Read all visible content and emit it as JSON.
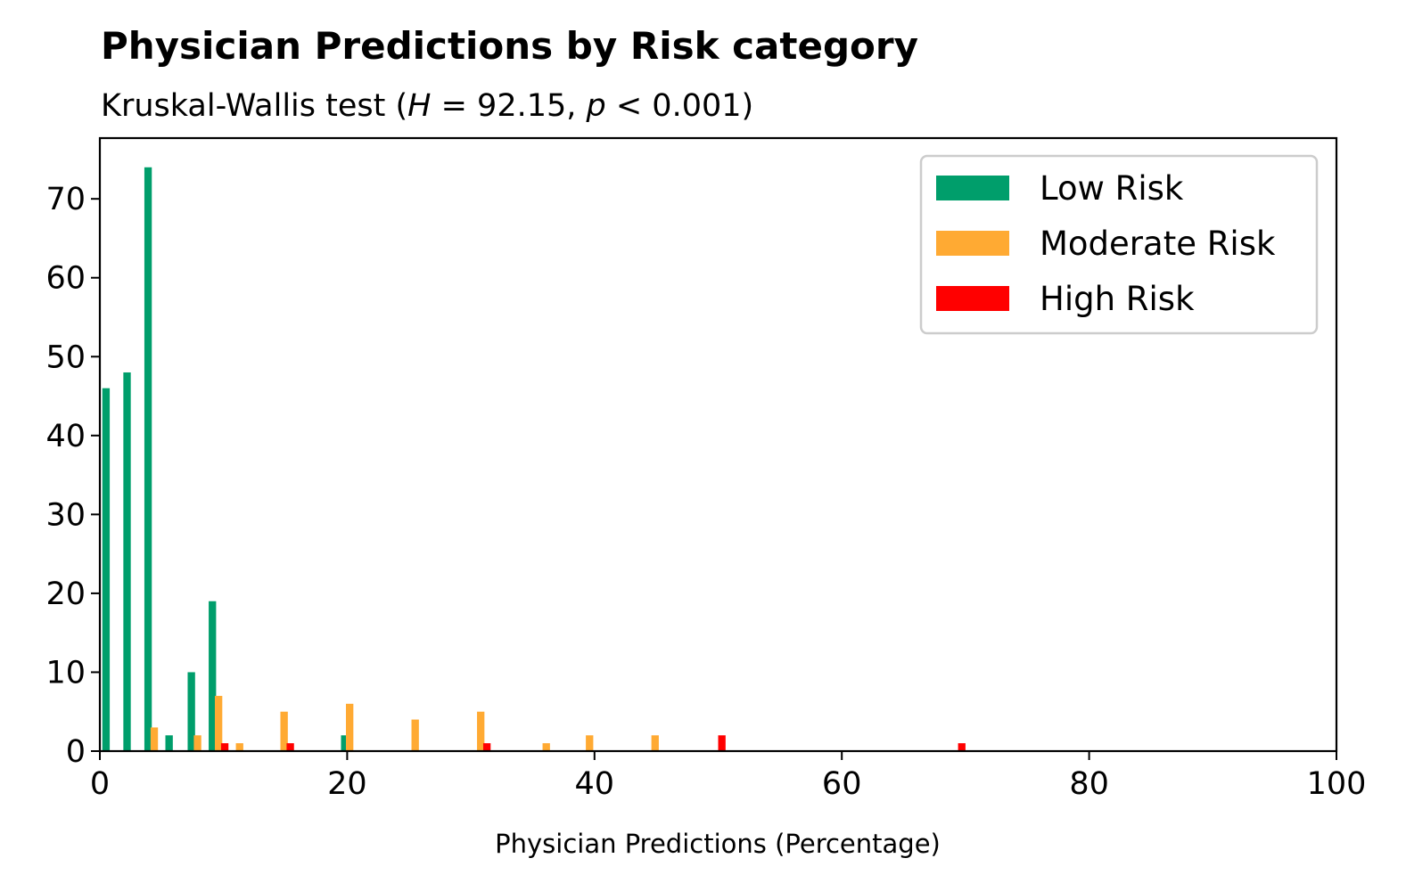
{
  "chart_data": {
    "type": "bar",
    "title": "Physician Predictions by Risk category",
    "subtitle": {
      "prefix": "Kruskal-Wallis test (",
      "h_var": "H",
      "h_eq": " = 92.15, ",
      "p_var": "p",
      "p_lt": " < 0.001)"
    },
    "xlabel": "Physician Predictions (Percentage)",
    "ylabel": "",
    "xlim": [
      0,
      100
    ],
    "ylim": [
      0,
      77.7
    ],
    "xticks": [
      0,
      20,
      40,
      60,
      80,
      100
    ],
    "yticks": [
      0,
      10,
      20,
      30,
      40,
      50,
      60,
      70
    ],
    "grid": false,
    "legend_position": "upper right",
    "bin_width": 1.8,
    "series": [
      {
        "name": "Low Risk",
        "color": "#009E6B",
        "points": [
          {
            "x": 0.5,
            "y": 46
          },
          {
            "x": 2.2,
            "y": 48
          },
          {
            "x": 3.9,
            "y": 74
          },
          {
            "x": 5.6,
            "y": 2
          },
          {
            "x": 7.4,
            "y": 10
          },
          {
            "x": 9.1,
            "y": 19
          },
          {
            "x": 19.8,
            "y": 2
          }
        ]
      },
      {
        "name": "Moderate Risk",
        "color": "#FFAA33",
        "points": [
          {
            "x": 4.4,
            "y": 3
          },
          {
            "x": 7.9,
            "y": 2
          },
          {
            "x": 9.6,
            "y": 7
          },
          {
            "x": 11.3,
            "y": 1
          },
          {
            "x": 14.9,
            "y": 5
          },
          {
            "x": 20.2,
            "y": 6
          },
          {
            "x": 25.5,
            "y": 4
          },
          {
            "x": 30.8,
            "y": 5
          },
          {
            "x": 36.1,
            "y": 1
          },
          {
            "x": 39.6,
            "y": 2
          },
          {
            "x": 44.9,
            "y": 2
          }
        ]
      },
      {
        "name": "High Risk",
        "color": "#FF0000",
        "points": [
          {
            "x": 10.1,
            "y": 1
          },
          {
            "x": 15.4,
            "y": 1
          },
          {
            "x": 31.3,
            "y": 1
          },
          {
            "x": 50.3,
            "y": 2
          },
          {
            "x": 69.7,
            "y": 1
          }
        ]
      }
    ]
  }
}
